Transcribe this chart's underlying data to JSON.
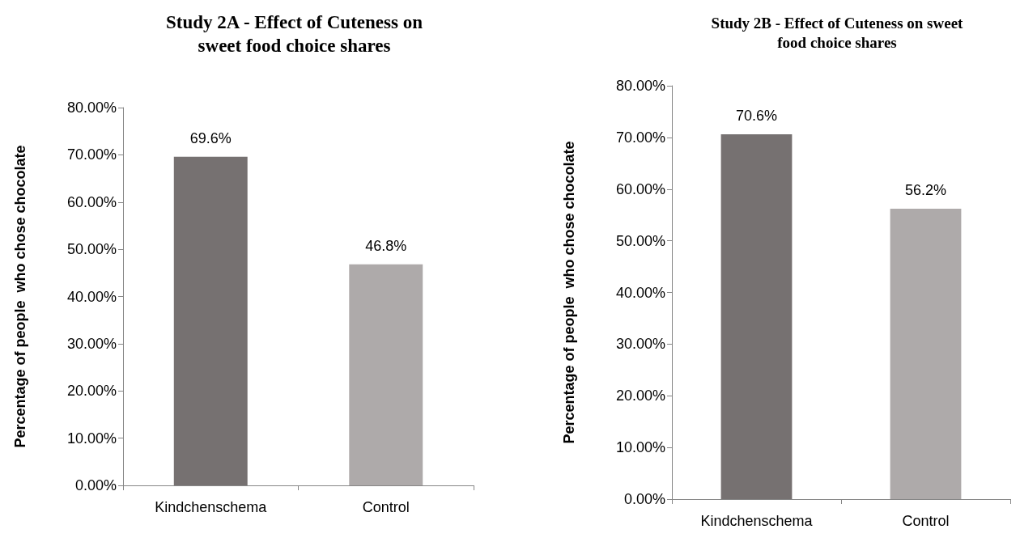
{
  "chart_data": [
    {
      "type": "bar",
      "title": "Study 2A - Effect of Cuteness on\nsweet food choice shares",
      "ylabel": "Percentage of people  who chose chocolate",
      "categories": [
        "Kindchenschema",
        "Control"
      ],
      "values": [
        69.6,
        46.8
      ],
      "colors": [
        "#767171",
        "#aeaaaa"
      ],
      "ylim": [
        0,
        80
      ],
      "yticks": [
        {
          "value": 0,
          "label": "0.00%"
        },
        {
          "value": 10,
          "label": "10.00%"
        },
        {
          "value": 20,
          "label": "20.00%"
        },
        {
          "value": 30,
          "label": "30.00%"
        },
        {
          "value": 40,
          "label": "40.00%"
        },
        {
          "value": 50,
          "label": "50.00%"
        },
        {
          "value": 60,
          "label": "60.00%"
        },
        {
          "value": 70,
          "label": "70.00%"
        },
        {
          "value": 80,
          "label": "80.00%"
        }
      ],
      "value_labels": [
        "69.6%",
        "46.8%"
      ],
      "grid": false
    },
    {
      "type": "bar",
      "title": "Study 2B - Effect of Cuteness on sweet\nfood choice shares",
      "ylabel": "Percentage of people  who chose chocolate",
      "categories": [
        "Kindchenschema",
        "Control"
      ],
      "values": [
        70.6,
        56.2
      ],
      "colors": [
        "#767171",
        "#aeaaaa"
      ],
      "ylim": [
        0,
        80
      ],
      "yticks": [
        {
          "value": 0,
          "label": "0.00%"
        },
        {
          "value": 10,
          "label": "10.00%"
        },
        {
          "value": 20,
          "label": "20.00%"
        },
        {
          "value": 30,
          "label": "30.00%"
        },
        {
          "value": 40,
          "label": "40.00%"
        },
        {
          "value": 50,
          "label": "50.00%"
        },
        {
          "value": 60,
          "label": "60.00%"
        },
        {
          "value": 70,
          "label": "70.00%"
        },
        {
          "value": 80,
          "label": "80.00%"
        }
      ],
      "value_labels": [
        "70.6%",
        "56.2%"
      ],
      "grid": false
    }
  ]
}
